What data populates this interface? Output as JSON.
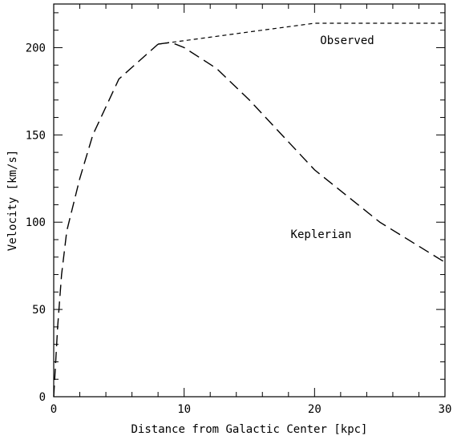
{
  "chart_data": {
    "type": "line",
    "title": "",
    "xlabel": "Distance from Galactic Center [kpc]",
    "ylabel": "Velocity [km/s]",
    "xlim": [
      0,
      30
    ],
    "ylim": [
      0,
      225
    ],
    "x_ticks": [
      0,
      10,
      20,
      30
    ],
    "y_ticks": [
      0,
      50,
      100,
      150,
      200
    ],
    "grid": false,
    "series": [
      {
        "name": "",
        "style": "long-dash",
        "x": [
          0,
          0.3,
          0.6,
          1,
          1.5,
          2,
          3,
          5,
          8
        ],
        "y": [
          0,
          40,
          70,
          95,
          110,
          125,
          150,
          182,
          202
        ]
      },
      {
        "name": "Observed",
        "style": "dashed",
        "x": [
          8,
          9,
          12,
          15,
          20,
          25,
          30
        ],
        "y": [
          202,
          203,
          206,
          209,
          214,
          214,
          214
        ]
      },
      {
        "name": "Keplerian",
        "style": "long-dash",
        "x": [
          8,
          9,
          10,
          12.5,
          15,
          20,
          25,
          30
        ],
        "y": [
          202,
          203,
          200,
          188,
          170,
          130,
          100,
          77
        ]
      }
    ],
    "annotations": [
      {
        "text": "Observed",
        "x": 22.5,
        "y": 202
      },
      {
        "text": "Keplerian",
        "x": 20.5,
        "y": 91
      }
    ]
  }
}
